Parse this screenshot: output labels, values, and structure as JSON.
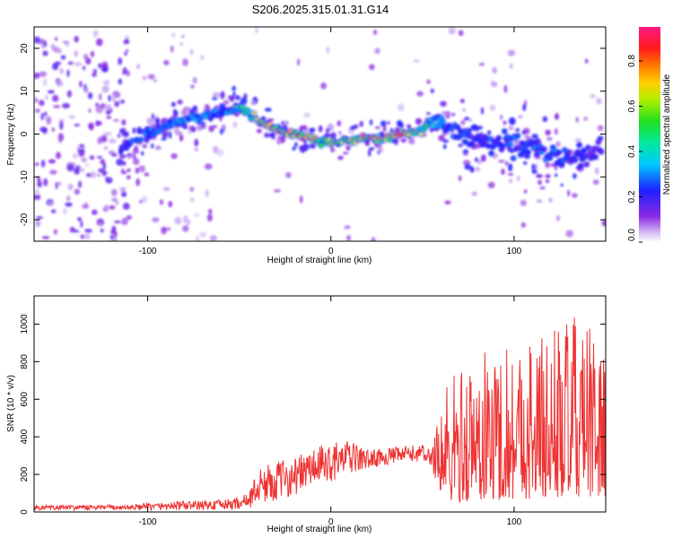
{
  "chart_data": [
    {
      "type": "heatmap",
      "title": "S206.2025.315.01.31.G14",
      "xlabel": "Height of straight line (km)",
      "ylabel": "Frequency (Hz)",
      "xlim": [
        -162,
        150
      ],
      "ylim": [
        -25,
        25
      ],
      "xticks": [
        -100,
        0,
        100
      ],
      "yticks": [
        -20,
        -10,
        0,
        10,
        20
      ],
      "colorbar": {
        "label": "Normalized spectral amplitude",
        "range": [
          0.0,
          0.95
        ],
        "ticks": [
          0.0,
          0.2,
          0.4,
          0.6,
          0.8
        ],
        "colormap": "rainbow (violet low to magenta high)"
      },
      "ridge": {
        "x": [
          -112,
          -100,
          -90,
          -80,
          -70,
          -60,
          -50,
          -45,
          -40,
          -30,
          -20,
          -10,
          0,
          10,
          20,
          30,
          40,
          50,
          55,
          60,
          70,
          80,
          90,
          100,
          110,
          120,
          130,
          140,
          148
        ],
        "frequency": [
          -3,
          0,
          2,
          3,
          4,
          5,
          6,
          5,
          3,
          1,
          0,
          -1,
          -2,
          -1.5,
          -1,
          -1,
          0,
          1,
          3,
          3,
          0,
          -1,
          -2,
          -3,
          -4,
          -5,
          -6,
          -5,
          -4
        ],
        "amplitude": [
          0.25,
          0.35,
          0.35,
          0.4,
          0.4,
          0.3,
          0.5,
          0.55,
          0.7,
          0.85,
          0.8,
          0.9,
          0.6,
          0.65,
          0.8,
          0.75,
          0.85,
          0.6,
          0.4,
          0.35,
          0.3,
          0.25,
          0.3,
          0.3,
          0.3,
          0.3,
          0.25,
          0.2,
          0.2
        ]
      }
    },
    {
      "type": "line",
      "xlabel": "Height of straight line (km)",
      "ylabel": "SNR (10 * v/v)",
      "xlim": [
        -162,
        150
      ],
      "ylim": [
        0,
        1150
      ],
      "xticks": [
        -100,
        0,
        100
      ],
      "yticks": [
        0,
        200,
        400,
        600,
        800,
        1000
      ],
      "color": "#ee3333",
      "envelope": {
        "x": [
          -162,
          -110,
          -80,
          -70,
          -55,
          -45,
          -40,
          -30,
          -20,
          -10,
          0,
          10,
          20,
          30,
          40,
          50,
          55,
          60,
          70,
          80,
          90,
          100,
          110,
          120,
          130,
          140,
          150
        ],
        "base": [
          10,
          10,
          10,
          10,
          10,
          20,
          40,
          60,
          90,
          130,
          160,
          200,
          230,
          250,
          260,
          270,
          240,
          50,
          50,
          60,
          60,
          70,
          70,
          70,
          80,
          80,
          80
        ],
        "top": [
          35,
          40,
          60,
          60,
          70,
          100,
          230,
          270,
          290,
          340,
          370,
          380,
          330,
          340,
          350,
          360,
          330,
          700,
          780,
          850,
          900,
          950,
          950,
          1000,
          1050,
          1000,
          900
        ]
      }
    }
  ]
}
